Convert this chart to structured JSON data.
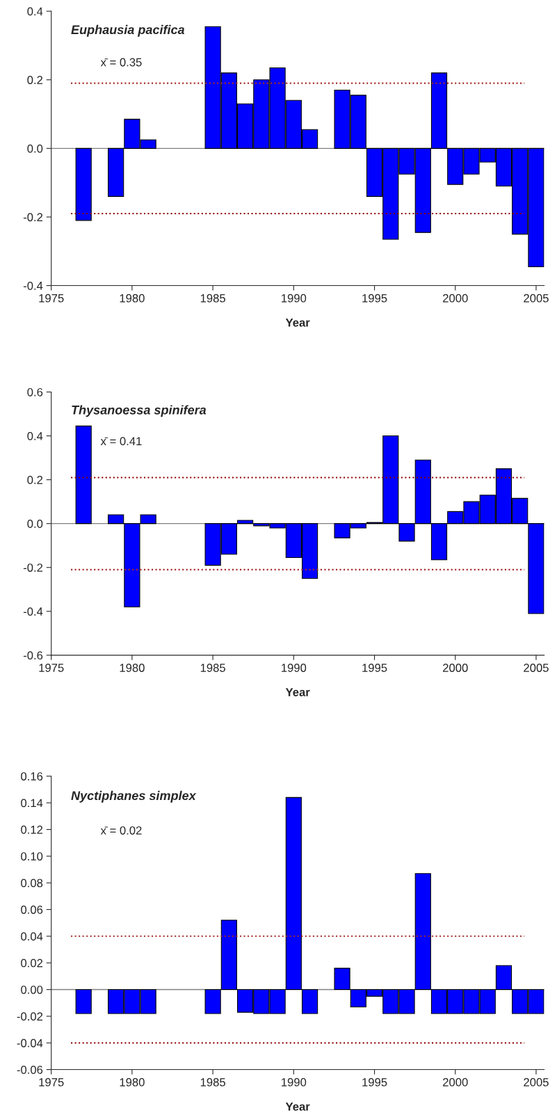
{
  "chart_data": [
    {
      "type": "bar",
      "title": "Euphausia pacifica",
      "xlabel": "Year",
      "annotations": [
        "x̄ = 0.35"
      ],
      "x": [
        1977,
        1979,
        1980,
        1981,
        1985,
        1986,
        1987,
        1988,
        1989,
        1990,
        1991,
        1993,
        1994,
        1995,
        1996,
        1997,
        1998,
        1999,
        2000,
        2001,
        2002,
        2003,
        2004,
        2005
      ],
      "series": [
        {
          "color": "#0000ff",
          "values": [
            -0.21,
            -0.14,
            0.085,
            0.025,
            0.355,
            0.22,
            0.13,
            0.2,
            0.235,
            0.14,
            0.055,
            0.17,
            0.155,
            -0.14,
            -0.265,
            -0.075,
            -0.245,
            0.22,
            -0.105,
            -0.075,
            -0.04,
            -0.11,
            -0.25,
            -0.345
          ]
        }
      ],
      "xlim": [
        1975,
        2005.5
      ],
      "xticks": [
        1975,
        1980,
        1985,
        1990,
        1995,
        2000,
        2005
      ],
      "ylim": [
        -0.4,
        0.4
      ],
      "yticks": [
        {
          "value": -0.4,
          "label": "-0.4"
        },
        {
          "value": -0.2,
          "label": "-0.2"
        },
        {
          "value": 0,
          "label": "0.0"
        },
        0.2,
        0.4
      ],
      "ref_lines": [
        {
          "axis": "y",
          "value": 0.19,
          "color": "#a52a2a",
          "line_style": "dotted"
        },
        {
          "axis": "y",
          "value": -0.19,
          "color": "#8b0000",
          "line_style": "dotted"
        }
      ]
    },
    {
      "type": "bar",
      "title": "Thysanoessa spinifera",
      "xlabel": "Year",
      "annotations": [
        "x̄ = 0.41"
      ],
      "x": [
        1977,
        1979,
        1980,
        1981,
        1985,
        1986,
        1987,
        1988,
        1989,
        1990,
        1991,
        1993,
        1994,
        1995,
        1996,
        1997,
        1998,
        1999,
        2000,
        2001,
        2002,
        2003,
        2004,
        2005
      ],
      "series": [
        {
          "color": "#0000ff",
          "values": [
            0.445,
            0.04,
            -0.38,
            0.04,
            -0.19,
            -0.14,
            0.015,
            -0.01,
            -0.02,
            -0.155,
            -0.25,
            -0.065,
            -0.02,
            0.005,
            0.4,
            -0.08,
            0.29,
            -0.165,
            0.055,
            0.1,
            0.13,
            0.25,
            0.115,
            -0.41
          ]
        }
      ],
      "xlim": [
        1975,
        2005.5
      ],
      "xticks": [
        1975,
        1980,
        1985,
        1990,
        1995,
        2000,
        2005
      ],
      "ylim": [
        -0.6,
        0.6
      ],
      "yticks": [
        {
          "value": -0.6,
          "label": "-0.6"
        },
        {
          "value": -0.4,
          "label": "-0.4"
        },
        {
          "value": -0.2,
          "label": "-0.2"
        },
        {
          "value": 0,
          "label": "0.0"
        },
        0.2,
        0.4,
        0.6
      ],
      "ref_lines": [
        {
          "axis": "y",
          "value": 0.21,
          "color": "#8b0000",
          "line_style": "dotted"
        },
        {
          "axis": "y",
          "value": -0.21,
          "color": "#a52a2a",
          "line_style": "dotted"
        }
      ]
    },
    {
      "type": "bar",
      "title": "Nyctiphanes simplex",
      "xlabel": "Year",
      "annotations": [
        "x̄ = 0.02"
      ],
      "x": [
        1977,
        1979,
        1980,
        1981,
        1985,
        1986,
        1987,
        1988,
        1989,
        1990,
        1991,
        1993,
        1994,
        1995,
        1996,
        1997,
        1998,
        1999,
        2000,
        2001,
        2002,
        2003,
        2004,
        2005
      ],
      "series": [
        {
          "color": "#0000ff",
          "values": [
            -0.018,
            -0.018,
            -0.018,
            -0.018,
            -0.018,
            0.052,
            -0.017,
            -0.018,
            -0.018,
            0.144,
            -0.018,
            0.016,
            -0.013,
            -0.005,
            -0.018,
            -0.018,
            0.087,
            -0.018,
            -0.018,
            -0.018,
            -0.018,
            0.018,
            -0.018,
            -0.018
          ]
        }
      ],
      "xlim": [
        1975,
        2005.5
      ],
      "xticks": [
        1975,
        1980,
        1985,
        1990,
        1995,
        2000,
        2005
      ],
      "ylim": [
        -0.06,
        0.16
      ],
      "yticks": [
        {
          "value": -0.06,
          "label": "-0.06"
        },
        {
          "value": -0.04,
          "label": "-0.04"
        },
        {
          "value": -0.02,
          "label": "-0.02"
        },
        {
          "value": 0,
          "label": "0.00"
        },
        {
          "value": 0.02,
          "label": "0.02"
        },
        {
          "value": 0.04,
          "label": "0.04"
        },
        {
          "value": 0.06,
          "label": "0.06"
        },
        {
          "value": 0.08,
          "label": "0.08"
        },
        {
          "value": 0.1,
          "label": "0.10"
        },
        {
          "value": 0.12,
          "label": "0.12"
        },
        {
          "value": 0.14,
          "label": "0.14"
        },
        {
          "value": 0.16,
          "label": "0.16"
        }
      ],
      "ref_lines": [
        {
          "axis": "y",
          "value": 0.04,
          "color": "#a52a2a",
          "line_style": "dotted"
        },
        {
          "axis": "y",
          "value": -0.04,
          "color": "#8b0000",
          "line_style": "dotted"
        }
      ]
    }
  ]
}
